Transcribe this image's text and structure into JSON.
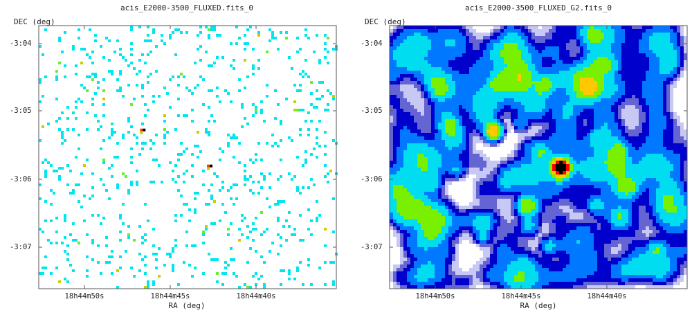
{
  "chart_data": [
    {
      "type": "heatmap",
      "title": "acis_E2000-3500_FLUXED.fits_0",
      "xlabel": "RA (deg)",
      "ylabel": "DEC (deg)",
      "x_ticks": [
        "18h44m50s",
        "18h44m45s",
        "18h44m40s"
      ],
      "y_ticks": [
        "-3:04",
        "-3:05",
        "-3:06",
        "-3:07"
      ],
      "style": "sparse_pixels",
      "colormap": [
        "#ffffff",
        "#00e5ee",
        "#66ee33",
        "#cccc00",
        "#ee4400",
        "#000000"
      ],
      "bright_sources": [
        {
          "ra": "18h44m46.6s",
          "dec": "-3:05:18"
        },
        {
          "ra": "18h44m42.7s",
          "dec": "-3:05:50"
        }
      ]
    },
    {
      "type": "heatmap",
      "title": "acis_E2000-3500_FLUXED_G2.fits_0",
      "xlabel": "RA (deg)",
      "ylabel": "DEC (deg)",
      "x_ticks": [
        "18h44m50s",
        "18h44m45s",
        "18h44m40s"
      ],
      "y_ticks": [
        "-3:04",
        "-3:05",
        "-3:06",
        "-3:07"
      ],
      "style": "smoothed",
      "colormap": [
        "#ffffff",
        "#c8c8f5",
        "#6464d2",
        "#0000cd",
        "#0078ff",
        "#00dcf0",
        "#78f000",
        "#ffc800",
        "#ff0000",
        "#000000"
      ],
      "bright_sources": [
        {
          "ra": "18h44m46.6s",
          "dec": "-3:05:18"
        },
        {
          "ra": "18h44m42.7s",
          "dec": "-3:05:50"
        }
      ]
    }
  ]
}
